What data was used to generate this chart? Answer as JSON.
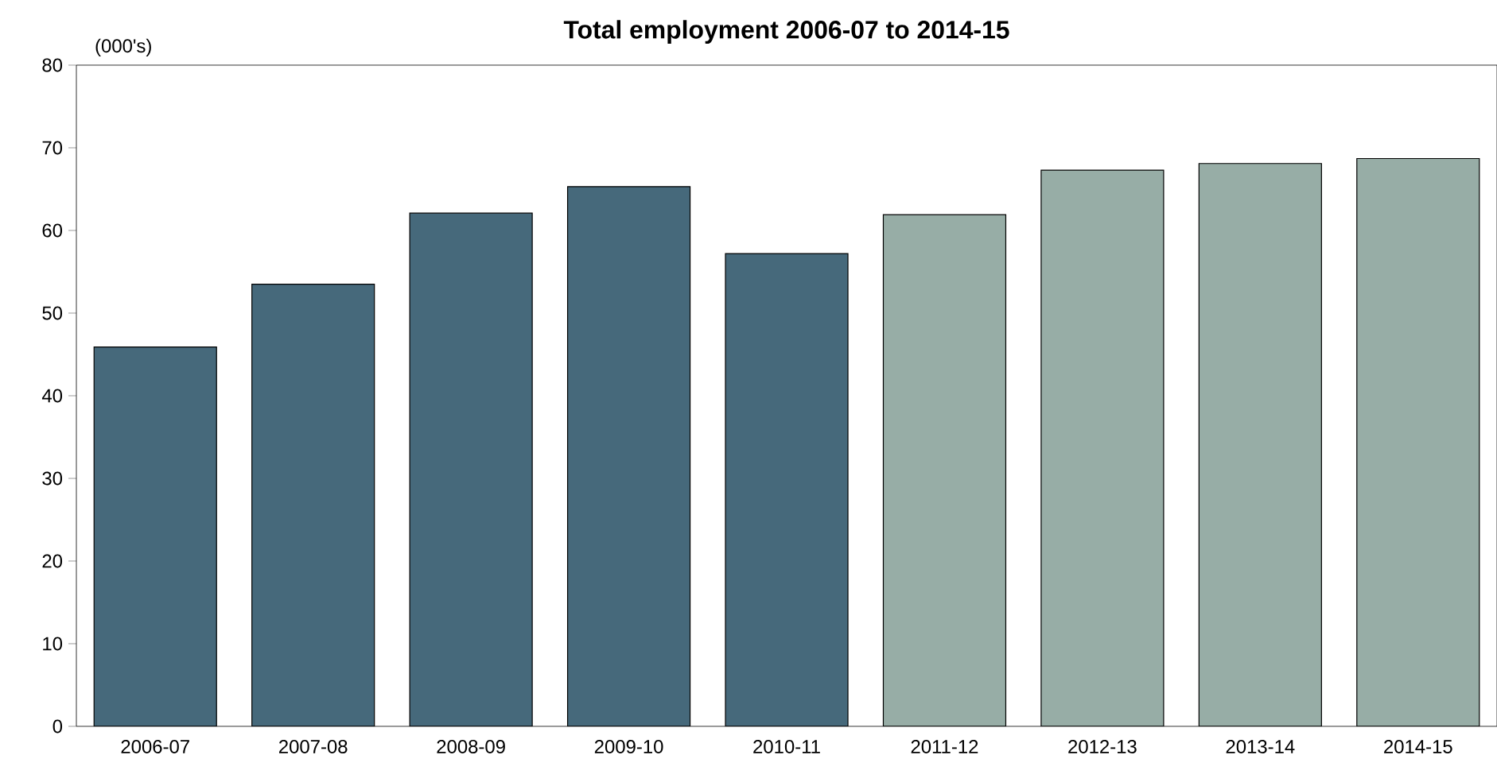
{
  "chart_data": {
    "type": "bar",
    "title": "Total employment 2006-07 to 2014-15",
    "ylabel": "(000's)",
    "categories": [
      "2006-07",
      "2007-08",
      "2008-09",
      "2009-10",
      "2010-11",
      "2011-12",
      "2012-13",
      "2013-14",
      "2014-15"
    ],
    "values": [
      45.9,
      53.5,
      62.1,
      65.3,
      57.2,
      61.9,
      67.3,
      68.1,
      68.7
    ],
    "colors": [
      "#46697b",
      "#46697b",
      "#46697b",
      "#46697b",
      "#46697b",
      "#97ada6",
      "#97ada6",
      "#97ada6",
      "#97ada6"
    ],
    "ylim": [
      0,
      80
    ],
    "yticks": [
      0,
      10,
      20,
      30,
      40,
      50,
      60,
      70,
      80
    ]
  }
}
